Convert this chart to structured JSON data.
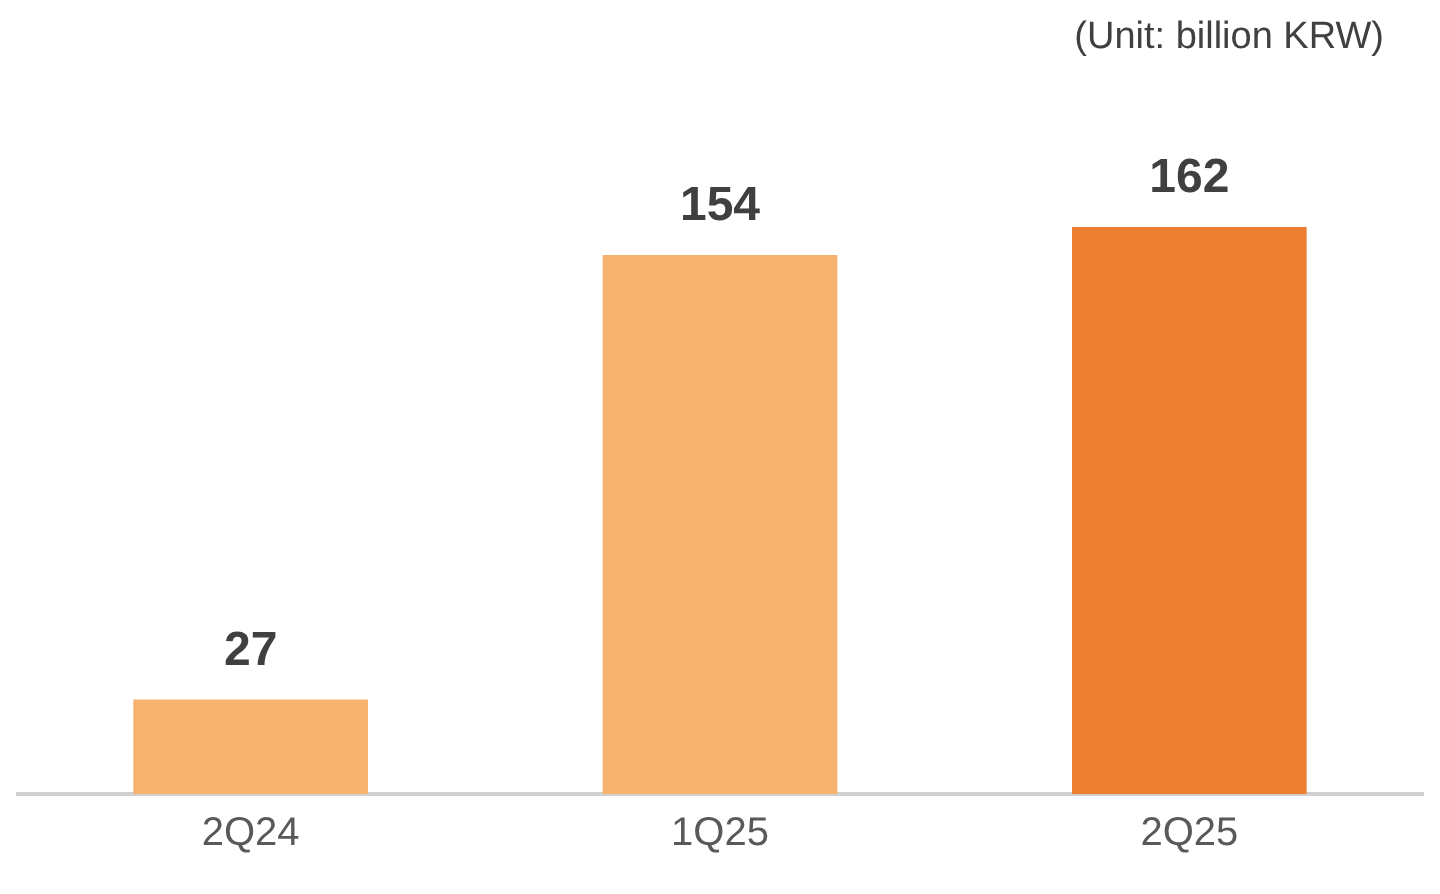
{
  "chart_data": {
    "type": "bar",
    "categories": [
      "2Q24",
      "1Q25",
      "2Q25"
    ],
    "values": [
      27,
      154,
      162
    ],
    "colors": [
      "#f7b26f",
      "#f7b26f",
      "#ed7d31"
    ],
    "data_labels": true,
    "grid": false,
    "legend": false,
    "annotations": [
      "(Unit: billion KRW)"
    ]
  }
}
